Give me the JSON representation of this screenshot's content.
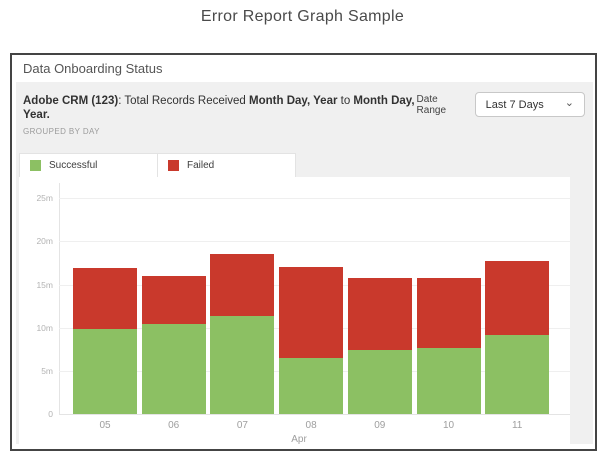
{
  "page": {
    "title": "Error Report Graph Sample"
  },
  "widget": {
    "title": "Data Onboarding Status"
  },
  "report": {
    "title_segments": [
      {
        "text": "Adobe CRM (123)",
        "bold": true
      },
      {
        "text": ": Total Records Received ",
        "bold": false
      },
      {
        "text": "Month Day, Year",
        "bold": true
      },
      {
        "text": " to ",
        "bold": false
      },
      {
        "text": "Month Day, Year.",
        "bold": true
      }
    ],
    "grouped_by": "GROUPED BY DAY",
    "date_range_label": "Date Range",
    "date_range_value": "Last 7 Days"
  },
  "icons": {
    "dropdown_chevron": "⌄"
  },
  "chart_data": {
    "type": "bar",
    "stacked": true,
    "unit": "millions of records",
    "categories": [
      "05",
      "06",
      "07",
      "08",
      "09",
      "10",
      "11"
    ],
    "x_group_label": "Apr",
    "series": [
      {
        "name": "Successful",
        "color": "#8cc063",
        "values": [
          9.8,
          10.4,
          11.4,
          6.5,
          7.4,
          7.7,
          9.1
        ]
      },
      {
        "name": "Failed",
        "color": "#c9392c",
        "values": [
          7.1,
          5.6,
          7.1,
          10.5,
          8.4,
          8.1,
          8.6
        ]
      }
    ],
    "ylim": [
      0,
      25
    ],
    "y_ticks": [
      {
        "value": 0,
        "label": "0"
      },
      {
        "value": 5,
        "label": "5m"
      },
      {
        "value": 10,
        "label": "10m"
      },
      {
        "value": 15,
        "label": "15m"
      },
      {
        "value": 20,
        "label": "20m"
      },
      {
        "value": 25,
        "label": "25m"
      }
    ],
    "grid": "horizontal",
    "legend_position": "top-left-tabs"
  }
}
